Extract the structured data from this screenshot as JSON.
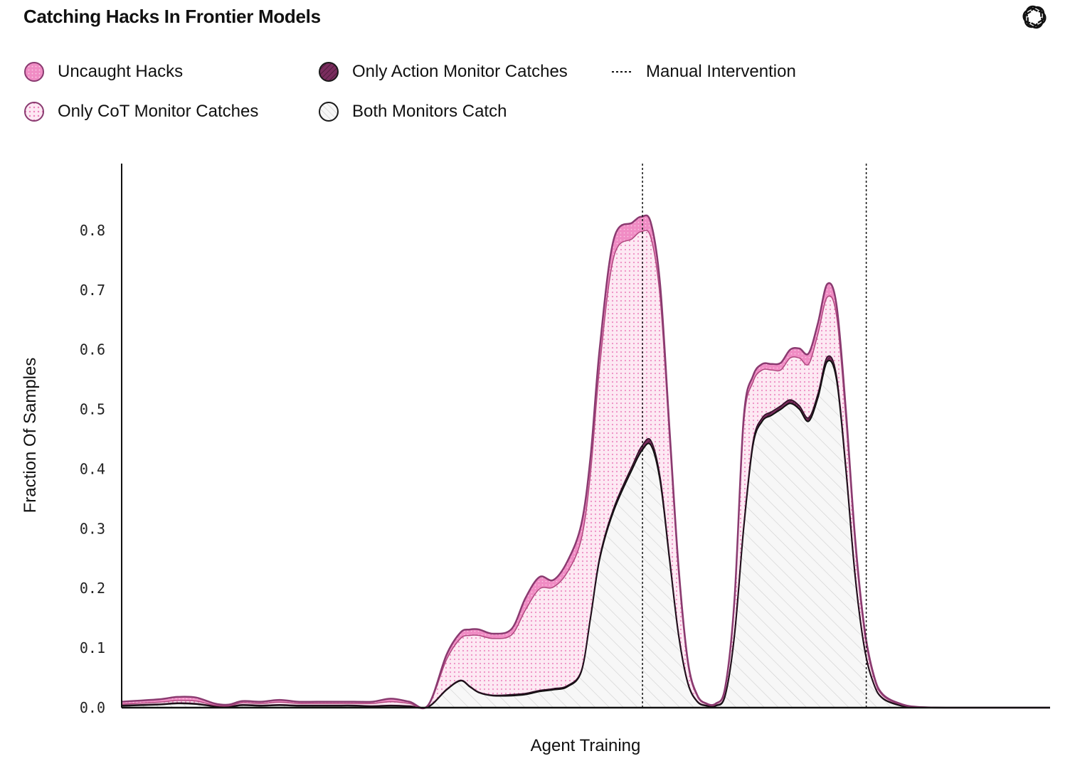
{
  "header": {
    "title": "Catching Hacks In Frontier Models",
    "logo_icon": "openai-logo-icon"
  },
  "legend": [
    {
      "label": "Uncaught Hacks",
      "swatch": "pink-dotted",
      "color": "#f08cc4"
    },
    {
      "label": "Only CoT Monitor Catches",
      "swatch": "light-pink-dotted",
      "color": "#fbdcec"
    },
    {
      "label": "Only Action Monitor Catches",
      "swatch": "dark-hatched",
      "color": "#7a2d5e"
    },
    {
      "label": "Both Monitors Catch",
      "swatch": "grey-hatched",
      "color": "#f2f2f2"
    },
    {
      "label": "Manual Intervention",
      "swatch": "dotted-line",
      "color": "#111111"
    }
  ],
  "chart_data": {
    "type": "area",
    "stacked": true,
    "title": "Catching Hacks In Frontier Models",
    "xlabel": "Agent Training",
    "ylabel": "Fraction Of Samples",
    "xlim": [
      0,
      100
    ],
    "ylim": [
      0,
      0.9
    ],
    "yticks": [
      "0.0",
      "0.1",
      "0.2",
      "0.3",
      "0.4",
      "0.5",
      "0.6",
      "0.7",
      "0.8"
    ],
    "x": [
      0,
      4,
      6,
      8,
      10,
      11.5,
      13,
      15,
      17,
      19,
      21,
      23,
      25,
      27,
      29,
      31,
      33,
      35,
      36.5,
      37.5,
      38.5,
      40,
      42,
      43.5,
      45,
      46.5,
      48,
      49.5,
      50.5,
      51.5,
      53,
      55,
      56,
      57,
      58,
      59,
      60,
      61,
      62,
      63,
      64,
      65,
      66,
      67,
      68,
      69,
      70,
      71,
      72,
      73,
      74,
      75,
      76,
      77,
      78,
      79,
      80,
      81,
      82,
      84,
      86,
      90,
      95,
      100
    ],
    "series": [
      {
        "name": "Both Monitors Catch",
        "values": [
          0.003,
          0.005,
          0.007,
          0.006,
          0.002,
          0.001,
          0.004,
          0.003,
          0.004,
          0.003,
          0.003,
          0.003,
          0.003,
          0.002,
          0.003,
          0.002,
          0.001,
          0.03,
          0.045,
          0.035,
          0.025,
          0.02,
          0.02,
          0.022,
          0.027,
          0.03,
          0.035,
          0.06,
          0.15,
          0.25,
          0.33,
          0.4,
          0.43,
          0.44,
          0.38,
          0.25,
          0.12,
          0.04,
          0.01,
          0.003,
          0.003,
          0.02,
          0.12,
          0.3,
          0.44,
          0.48,
          0.49,
          0.5,
          0.51,
          0.5,
          0.48,
          0.52,
          0.58,
          0.55,
          0.4,
          0.22,
          0.1,
          0.04,
          0.015,
          0.003,
          0.001,
          0,
          0,
          0
        ]
      },
      {
        "name": "Only Action Monitor Catches",
        "values": [
          0.001,
          0.001,
          0.001,
          0.001,
          0.001,
          0.001,
          0.001,
          0.001,
          0.001,
          0.001,
          0.001,
          0.001,
          0.001,
          0.001,
          0.001,
          0.001,
          0.001,
          0.001,
          0.001,
          0.001,
          0.001,
          0.001,
          0.002,
          0.002,
          0.002,
          0.002,
          0.002,
          0.002,
          0.003,
          0.004,
          0.005,
          0.006,
          0.008,
          0.008,
          0.007,
          0.005,
          0.003,
          0.002,
          0.001,
          0.001,
          0.001,
          0.002,
          0.004,
          0.005,
          0.006,
          0.006,
          0.006,
          0.006,
          0.006,
          0.006,
          0.006,
          0.007,
          0.008,
          0.007,
          0.006,
          0.004,
          0.002,
          0.001,
          0.001,
          0.001,
          0,
          0,
          0,
          0
        ]
      },
      {
        "name": "Only CoT Monitor Catches",
        "values": [
          0.002,
          0.003,
          0.004,
          0.004,
          0.001,
          0.001,
          0.003,
          0.003,
          0.004,
          0.003,
          0.003,
          0.003,
          0.003,
          0.004,
          0.006,
          0.004,
          0.001,
          0.05,
          0.07,
          0.085,
          0.095,
          0.095,
          0.1,
          0.14,
          0.17,
          0.17,
          0.19,
          0.22,
          0.24,
          0.32,
          0.42,
          0.38,
          0.36,
          0.34,
          0.3,
          0.2,
          0.1,
          0.03,
          0.008,
          0.002,
          0.002,
          0.01,
          0.05,
          0.17,
          0.1,
          0.08,
          0.07,
          0.06,
          0.07,
          0.08,
          0.09,
          0.1,
          0.1,
          0.1,
          0.08,
          0.05,
          0.025,
          0.01,
          0.004,
          0.001,
          0,
          0,
          0,
          0
        ]
      },
      {
        "name": "Uncaught Hacks",
        "values": [
          0.004,
          0.005,
          0.006,
          0.006,
          0.003,
          0.002,
          0.003,
          0.003,
          0.004,
          0.003,
          0.003,
          0.003,
          0.003,
          0.003,
          0.005,
          0.003,
          0.001,
          0.008,
          0.01,
          0.01,
          0.01,
          0.008,
          0.01,
          0.02,
          0.02,
          0.012,
          0.018,
          0.025,
          0.027,
          0.03,
          0.03,
          0.027,
          0.025,
          0.025,
          0.022,
          0.015,
          0.01,
          0.005,
          0.002,
          0.001,
          0.001,
          0.002,
          0.006,
          0.01,
          0.01,
          0.01,
          0.01,
          0.012,
          0.014,
          0.016,
          0.018,
          0.018,
          0.022,
          0.018,
          0.014,
          0.01,
          0.007,
          0.004,
          0.002,
          0.001,
          0,
          0,
          0,
          0
        ]
      }
    ],
    "vlines": [
      {
        "x": 56.1,
        "label": "Manual Intervention"
      },
      {
        "x": 80.2,
        "label": "Manual Intervention"
      }
    ],
    "colors": {
      "uncaught": "#f08cc4",
      "cot": "#fbdcec",
      "cot_dot": "#ec7fbc",
      "action": "#7a2d5e",
      "both_fill": "#f4f4f4",
      "both_hatch": "#d2d2d2",
      "outline_top": "#8a3a70"
    }
  }
}
